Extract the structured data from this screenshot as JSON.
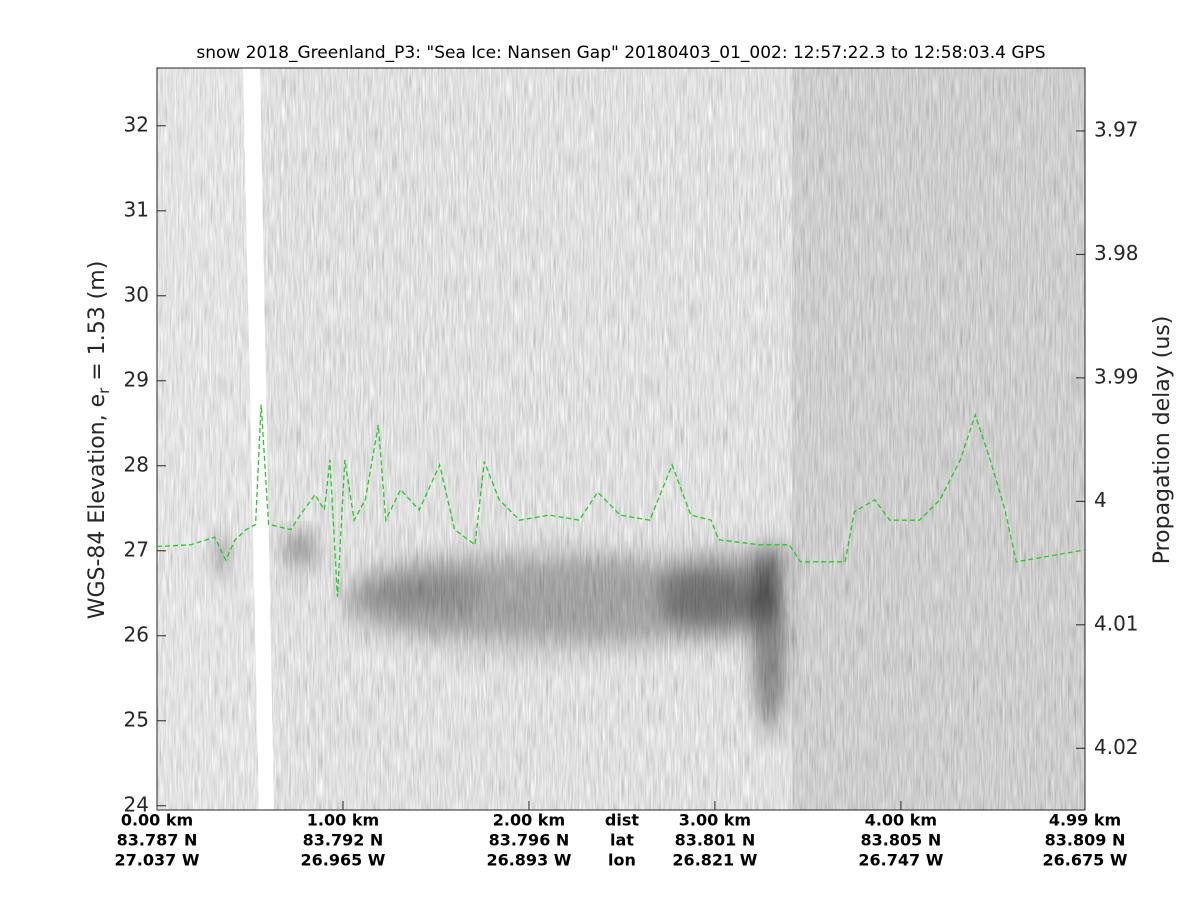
{
  "chart_data": {
    "type": "line",
    "title": "snow 2018_Greenland_P3: \"Sea Ice: Nansen Gap\"  20180403_01_002: 12:57:22.3 to 12:58:03.4 GPS",
    "ylabel": "WGS-84 Elevation, e",
    "ylabel_sub": "r",
    "ylabel_rest": " = 1.53 (m)",
    "y2label": "Propagation delay (us)",
    "xlim": [
      0,
      4.99
    ],
    "ylim": [
      23.95,
      32.68
    ],
    "yticks": [
      24,
      25,
      26,
      27,
      28,
      29,
      30,
      31,
      32
    ],
    "y2lim": [
      4.025,
      3.9649
    ],
    "y2ticks": [
      3.97,
      3.98,
      3.99,
      4,
      4.01,
      4.02
    ],
    "xticks": [
      {
        "value": 0,
        "label": "0.00 km"
      },
      {
        "value": 1,
        "label": "1.00 km"
      },
      {
        "value": 2,
        "label": "2.00 km"
      },
      {
        "value": 3,
        "label": "3.00 km"
      },
      {
        "value": 4,
        "label": "4.00 km"
      },
      {
        "value": 4.99,
        "label": "4.99 km"
      }
    ],
    "xtick_name": "dist",
    "xtick_name_at": 2.5,
    "lat": {
      "name": "lat",
      "labels": [
        "83.787 N",
        "83.792 N",
        "83.796 N",
        "83.801 N",
        "83.805 N",
        "83.809 N"
      ]
    },
    "lon": {
      "name": "lon",
      "labels": [
        "27.037 W",
        "26.965 W",
        "26.893 W",
        "26.821 W",
        "26.747 W",
        "26.675 W"
      ]
    },
    "line_style": "dashed",
    "series": [
      {
        "color": "#22cc22",
        "x": [
          0,
          0.18,
          0.31,
          0.37,
          0.42,
          0.48,
          0.53,
          0.56,
          0.6,
          0.72,
          0.77,
          0.85,
          0.9,
          0.93,
          0.97,
          1.01,
          1.06,
          1.12,
          1.19,
          1.23,
          1.31,
          1.41,
          1.52,
          1.6,
          1.71,
          1.76,
          1.84,
          1.95,
          2.11,
          2.27,
          2.37,
          2.49,
          2.65,
          2.77,
          2.87,
          2.98,
          3.02,
          3.24,
          3.4,
          3.46,
          3.7,
          3.75,
          3.86,
          3.94,
          4.1,
          4.21,
          4.32,
          4.4,
          4.48,
          4.56,
          4.62,
          4.99
        ],
        "values": [
          27.05,
          27.07,
          27.16,
          26.89,
          27.13,
          27.25,
          27.31,
          28.72,
          27.31,
          27.25,
          27.42,
          27.66,
          27.48,
          28.07,
          26.46,
          28.07,
          27.36,
          27.6,
          28.48,
          27.36,
          27.72,
          27.48,
          28.01,
          27.25,
          27.07,
          28.05,
          27.6,
          27.36,
          27.42,
          27.36,
          27.69,
          27.42,
          27.36,
          28.01,
          27.42,
          27.36,
          27.13,
          27.07,
          27.07,
          26.87,
          26.87,
          27.46,
          27.6,
          27.36,
          27.36,
          27.6,
          28.07,
          28.6,
          28.07,
          27.48,
          26.87,
          27.01
        ]
      }
    ]
  }
}
